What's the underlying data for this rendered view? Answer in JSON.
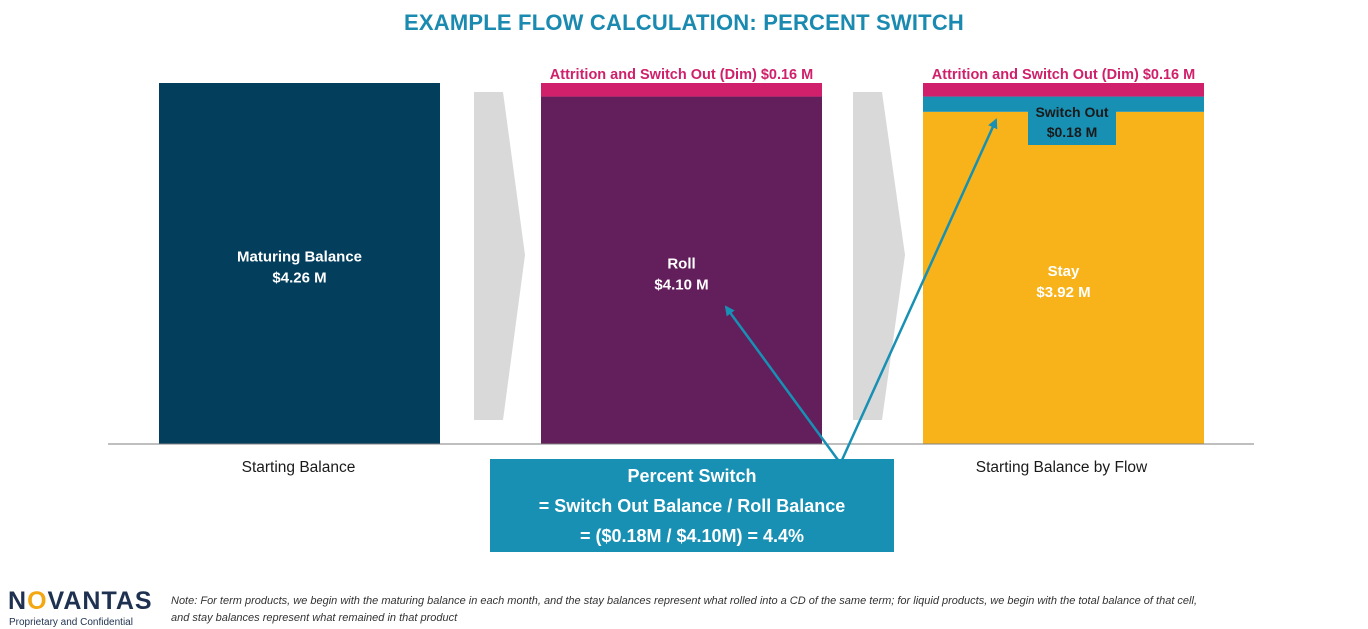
{
  "title": "EXAMPLE FLOW CALCULATION: PERCENT SWITCH",
  "colors": {
    "title": "#1a8ab0",
    "maturing": "#033e5c",
    "roll": "#631e5c",
    "stay": "#f8b31a",
    "switch_out": "#1790b4",
    "attrition": "#d0206b",
    "formula_box": "#1790b4",
    "chevron": "#d9d9d9",
    "axis": "#7f7f7f",
    "arrow": "#1790b4"
  },
  "chart_data": {
    "type": "bar",
    "stacked": true,
    "categories": [
      "Starting Balance",
      "",
      "Starting Balance by Flow"
    ],
    "ylim": [
      0,
      4.26
    ],
    "grid": false,
    "bars": [
      {
        "category": "Starting Balance",
        "segments": [
          {
            "key": "maturing",
            "label": "Maturing Balance",
            "value_label": "$4.26 M",
            "value": 4.26,
            "color": "#033e5c"
          }
        ]
      },
      {
        "category": "",
        "segments": [
          {
            "key": "roll",
            "label": "Roll",
            "value_label": "$4.10 M",
            "value": 4.1,
            "color": "#631e5c"
          },
          {
            "key": "attrition",
            "label": "Attrition and Switch Out (Dim) $0.16 M",
            "value_label": "",
            "value": 0.16,
            "color": "#d0206b"
          }
        ]
      },
      {
        "category": "Starting Balance by Flow",
        "segments": [
          {
            "key": "stay",
            "label": "Stay",
            "value_label": "$3.92 M",
            "value": 3.92,
            "color": "#f8b31a"
          },
          {
            "key": "switch_out",
            "label": "Switch Out",
            "value_label": "$0.18 M",
            "value": 0.18,
            "color": "#1790b4"
          },
          {
            "key": "attrition",
            "label": "Attrition and Switch Out (Dim) $0.16 M",
            "value_label": "",
            "value": 0.16,
            "color": "#d0206b"
          }
        ]
      }
    ]
  },
  "formula": {
    "line1": "Percent Switch",
    "line2": "= Switch Out Balance / Roll Balance",
    "line3": "= ($0.18M / $4.10M) = 4.4%"
  },
  "logo": {
    "pre": "N",
    "o": "O",
    "post": "VANTAS"
  },
  "confidential": "Proprietary and Confidential",
  "footnote": "Note: For term products, we begin with the maturing balance in each month, and the stay balances represent what rolled into a CD of the same term; for liquid products, we begin with the total balance of that cell, and stay balances represent what remained in that product"
}
